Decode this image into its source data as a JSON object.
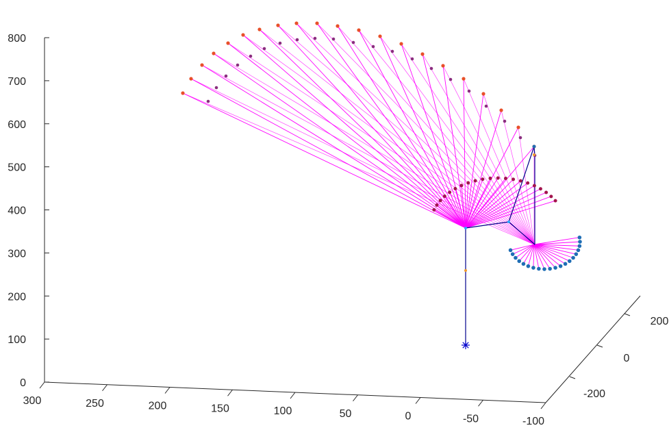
{
  "chart_data": {
    "type": "line",
    "title": "",
    "xlabel": "",
    "ylabel": "",
    "zlabel": "",
    "grid": false,
    "legend": false,
    "axis_color": "#262626",
    "x_ticks": [
      "300",
      "250",
      "200",
      "150",
      "100",
      "50",
      "0",
      "-50",
      "-100"
    ],
    "y_ticks": [
      "-200",
      "0",
      "200"
    ],
    "z_ticks": [
      "0",
      "100",
      "200",
      "300",
      "400",
      "500",
      "600",
      "700",
      "800"
    ],
    "colors": {
      "fan_lines": "#ff00ff",
      "arm": "#00008b",
      "outer_arc": "#e8502a",
      "middle_arc": "#8a2e7e",
      "inner_arc": "#a3144d",
      "lower_arc": "#1f6eb5",
      "joint_orange": "#f09a2a",
      "joint_blue": "#2aa6ff",
      "base_marker": "#0000cd"
    },
    "series": [
      {
        "type": "fan",
        "count": 21
      },
      {
        "type": "fan",
        "count": 20
      }
    ]
  }
}
